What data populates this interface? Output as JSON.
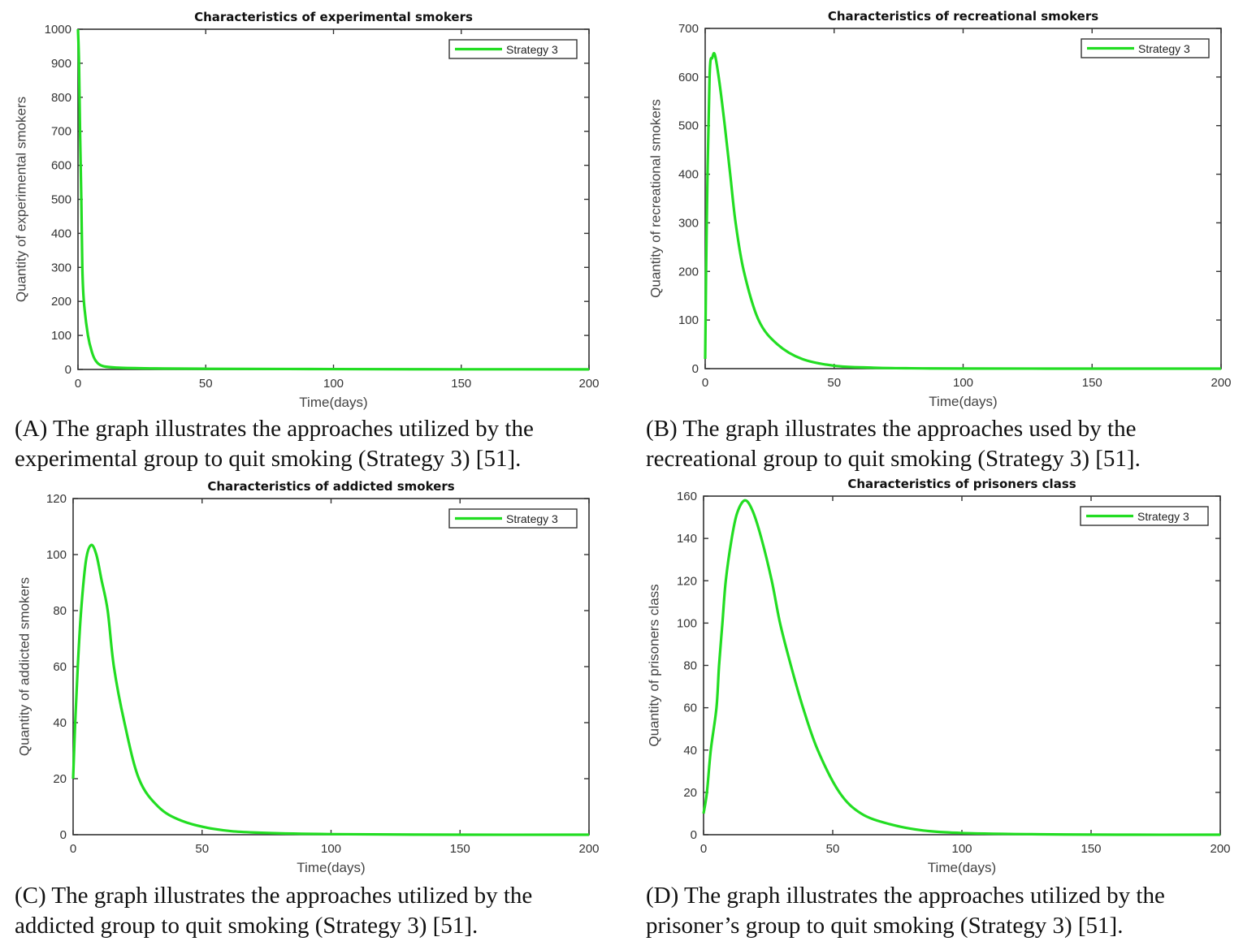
{
  "colors": {
    "series": "#22dd22",
    "axis": "#333333"
  },
  "chart_data": [
    {
      "type": "line",
      "title": "Characteristics of experimental smokers",
      "xlabel": "Time(days)",
      "ylabel": "Quantity of experimental smokers",
      "xlim": [
        0,
        200
      ],
      "ylim": [
        0,
        1000
      ],
      "xticks": [
        0,
        50,
        100,
        150,
        200
      ],
      "yticks": [
        0,
        100,
        200,
        300,
        400,
        500,
        600,
        700,
        800,
        900,
        1000
      ],
      "legend": "top-right",
      "grid": false,
      "series": [
        {
          "name": "Strategy 3",
          "x": [
            0,
            0.4,
            0.8,
            1.3,
            1.7,
            2.3,
            3.9,
            5.5,
            7,
            9.7,
            16,
            30,
            50,
            100,
            150,
            200
          ],
          "y": [
            1000,
            900,
            700,
            500,
            300,
            200,
            100,
            50,
            25,
            10,
            5,
            3,
            2,
            1,
            0.5,
            0.3
          ]
        }
      ],
      "caption": [
        "(A) The graph illustrates the approaches utilized by the",
        "experimental group to quit smoking (Strategy 3) [51]."
      ]
    },
    {
      "type": "line",
      "title": "Characteristics of recreational smokers",
      "xlabel": "Time(days)",
      "ylabel": "Quantity of recreational smokers",
      "xlim": [
        0,
        200
      ],
      "ylim": [
        0,
        700
      ],
      "xticks": [
        0,
        50,
        100,
        150,
        200
      ],
      "yticks": [
        0,
        100,
        200,
        300,
        400,
        500,
        600,
        700
      ],
      "legend": "top-right",
      "grid": false,
      "series": [
        {
          "name": "Strategy 3",
          "x": [
            0,
            0.6,
            1.7,
            2.8,
            3.8,
            5.5,
            7.6,
            9.7,
            11.8,
            15,
            20.7,
            28,
            37.5,
            50,
            65,
            80,
            100,
            150,
            200
          ],
          "y": [
            20,
            300,
            600,
            640,
            645,
            590,
            500,
            400,
            300,
            200,
            100,
            50,
            20,
            6,
            2,
            0.7,
            0.2,
            0,
            0
          ]
        }
      ],
      "caption": [
        "(B) The graph illustrates the approaches used by the",
        "recreational group to quit smoking (Strategy 3) [51]."
      ]
    },
    {
      "type": "line",
      "title": "Characteristics of addicted smokers",
      "xlabel": "Time(days)",
      "ylabel": "Quantity of addicted smokers",
      "xlim": [
        0,
        200
      ],
      "ylim": [
        0,
        120
      ],
      "xticks": [
        0,
        50,
        100,
        150,
        200
      ],
      "yticks": [
        0,
        20,
        40,
        60,
        80,
        100,
        120
      ],
      "legend": "top-right",
      "grid": false,
      "series": [
        {
          "name": "Strategy 3",
          "x": [
            0,
            0.8,
            1.8,
            3.1,
            5,
            7,
            9,
            11,
            13.4,
            15.8,
            19.9,
            25.5,
            33,
            42,
            55,
            70,
            100,
            150,
            200
          ],
          "y": [
            20,
            40,
            60,
            80,
            98,
            103.4,
            100,
            91,
            80,
            60,
            40,
            20,
            10,
            5,
            2,
            0.8,
            0.2,
            0,
            0
          ]
        }
      ],
      "caption": [
        "(C) The graph illustrates the approaches utilized by the",
        "addicted group to quit smoking (Strategy 3) [51]."
      ]
    },
    {
      "type": "line",
      "title": "Characteristics of prisoners class",
      "xlabel": "Time(days)",
      "ylabel": "Quantity of prisoners class",
      "xlim": [
        0,
        200
      ],
      "ylim": [
        0,
        160
      ],
      "xticks": [
        0,
        50,
        100,
        150,
        200
      ],
      "yticks": [
        0,
        20,
        40,
        60,
        80,
        100,
        120,
        140,
        160
      ],
      "legend": "top-right",
      "grid": false,
      "series": [
        {
          "name": "Strategy 3",
          "x": [
            0,
            1.3,
            2.8,
            5,
            6,
            7.3,
            8.6,
            10.9,
            13,
            16,
            19,
            22.4,
            26.4,
            29.6,
            33.8,
            38.5,
            44.2,
            52.6,
            61,
            72,
            85,
            100,
            130,
            160,
            200
          ],
          "y": [
            10,
            20,
            40,
            60,
            80,
            100,
            120,
            140,
            152,
            158,
            153,
            140,
            120,
            100,
            80,
            60,
            40,
            20,
            10,
            5,
            2,
            0.8,
            0.2,
            0,
            0
          ]
        }
      ],
      "caption": [
        "(D) The graph illustrates the approaches utilized by the",
        "prisoner’s group to quit smoking (Strategy 3) [51]."
      ]
    }
  ]
}
